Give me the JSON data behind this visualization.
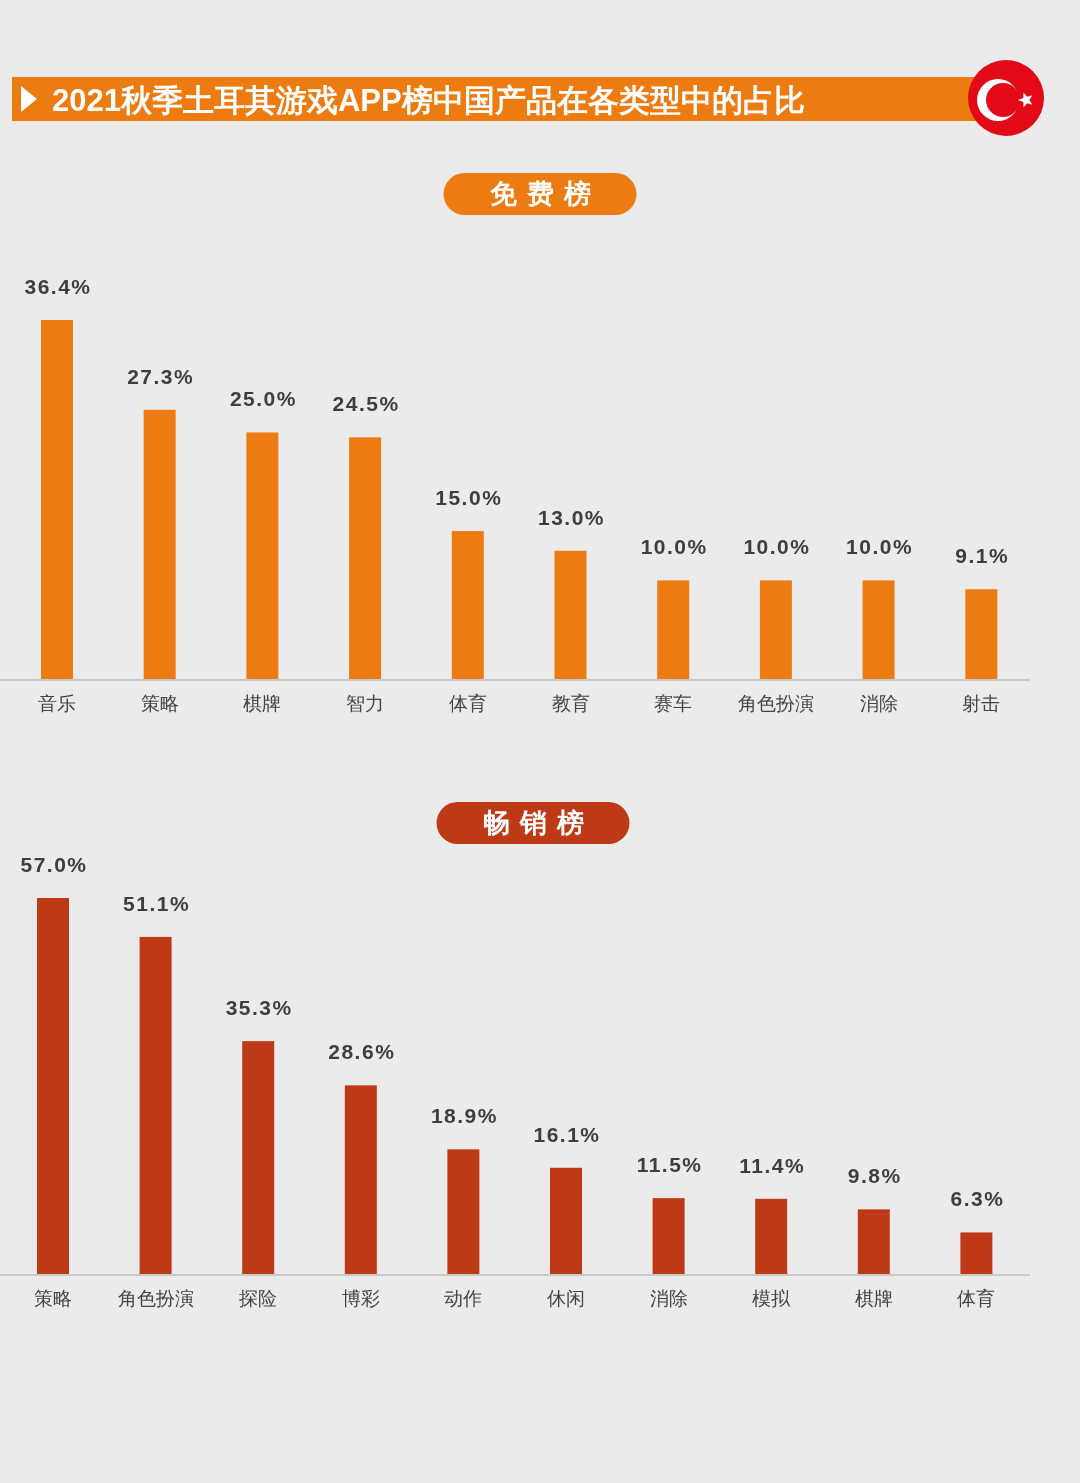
{
  "chart_data": [
    {
      "type": "bar",
      "title": "2021秋季土耳其游戏APP榜中国产品在各类型中的占比",
      "subtitle": "免费榜",
      "categories": [
        "音乐",
        "策略",
        "棋牌",
        "智力",
        "体育",
        "教育",
        "赛车",
        "角色扮演",
        "消除",
        "射击"
      ],
      "values": [
        36.4,
        27.3,
        25.0,
        24.5,
        15.0,
        13.0,
        10.0,
        10.0,
        10.0,
        9.1
      ],
      "value_labels": [
        "36.4%",
        "27.3%",
        "25.0%",
        "24.5%",
        "15.0%",
        "13.0%",
        "10.0%",
        "10.0%",
        "10.0%",
        "9.1%"
      ],
      "color": "#ec7c11"
    },
    {
      "type": "bar",
      "title": "畅销榜",
      "categories": [
        "策略",
        "角色扮演",
        "探险",
        "博彩",
        "动作",
        "休闲",
        "消除",
        "模拟",
        "棋牌",
        "体育"
      ],
      "values": [
        57.0,
        51.1,
        35.3,
        28.6,
        18.9,
        16.1,
        11.5,
        11.4,
        9.8,
        6.3
      ],
      "value_labels": [
        "57.0%",
        "51.1%",
        "35.3%",
        "28.6%",
        "18.9%",
        "16.1%",
        "11.5%",
        "11.4%",
        "9.8%",
        "6.3%"
      ],
      "color": "#be3a16"
    }
  ]
}
